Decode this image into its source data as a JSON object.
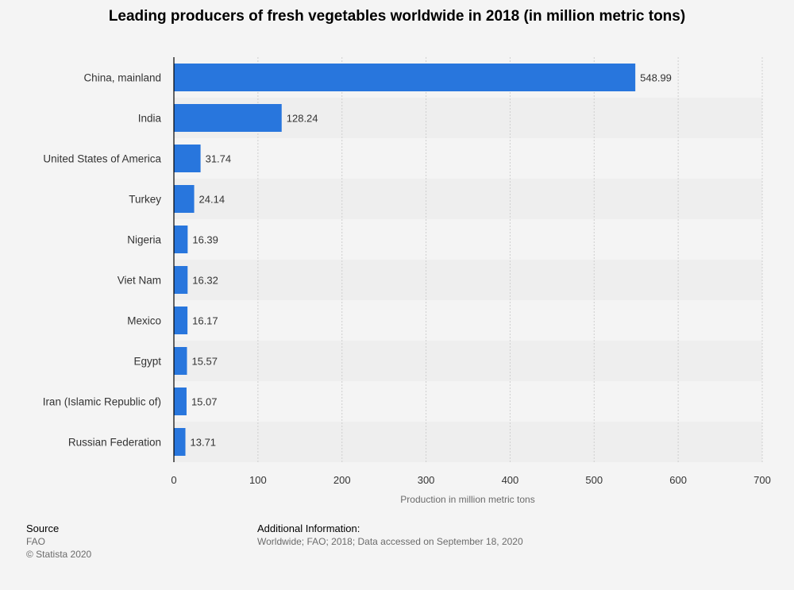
{
  "chart_data": {
    "type": "bar",
    "orientation": "horizontal",
    "title": "Leading producers of fresh vegetables worldwide in 2018 (in million metric tons)",
    "xlabel": "Production in million metric tons",
    "ylabel": "",
    "categories": [
      "China, mainland",
      "India",
      "United States of America",
      "Turkey",
      "Nigeria",
      "Viet Nam",
      "Mexico",
      "Egypt",
      "Iran (Islamic Republic of)",
      "Russian Federation"
    ],
    "values": [
      548.99,
      128.24,
      31.74,
      24.14,
      16.39,
      16.32,
      16.17,
      15.57,
      15.07,
      13.71
    ],
    "value_labels": [
      "548.99",
      "128.24",
      "31.74",
      "24.14",
      "16.39",
      "16.32",
      "16.17",
      "15.57",
      "15.07",
      "13.71"
    ],
    "xlim": [
      0,
      700
    ],
    "xticks": [
      0,
      100,
      200,
      300,
      400,
      500,
      600,
      700
    ],
    "grid": "vertical-dashed",
    "bar_color": "#2876dd",
    "band_color": "#eeeeee"
  },
  "footer": {
    "source_label": "Source",
    "source_value": "FAO",
    "copyright": "© Statista 2020",
    "additional_label": "Additional Information:",
    "additional_value": "Worldwide; FAO; 2018; Data accessed on September 18, 2020"
  }
}
